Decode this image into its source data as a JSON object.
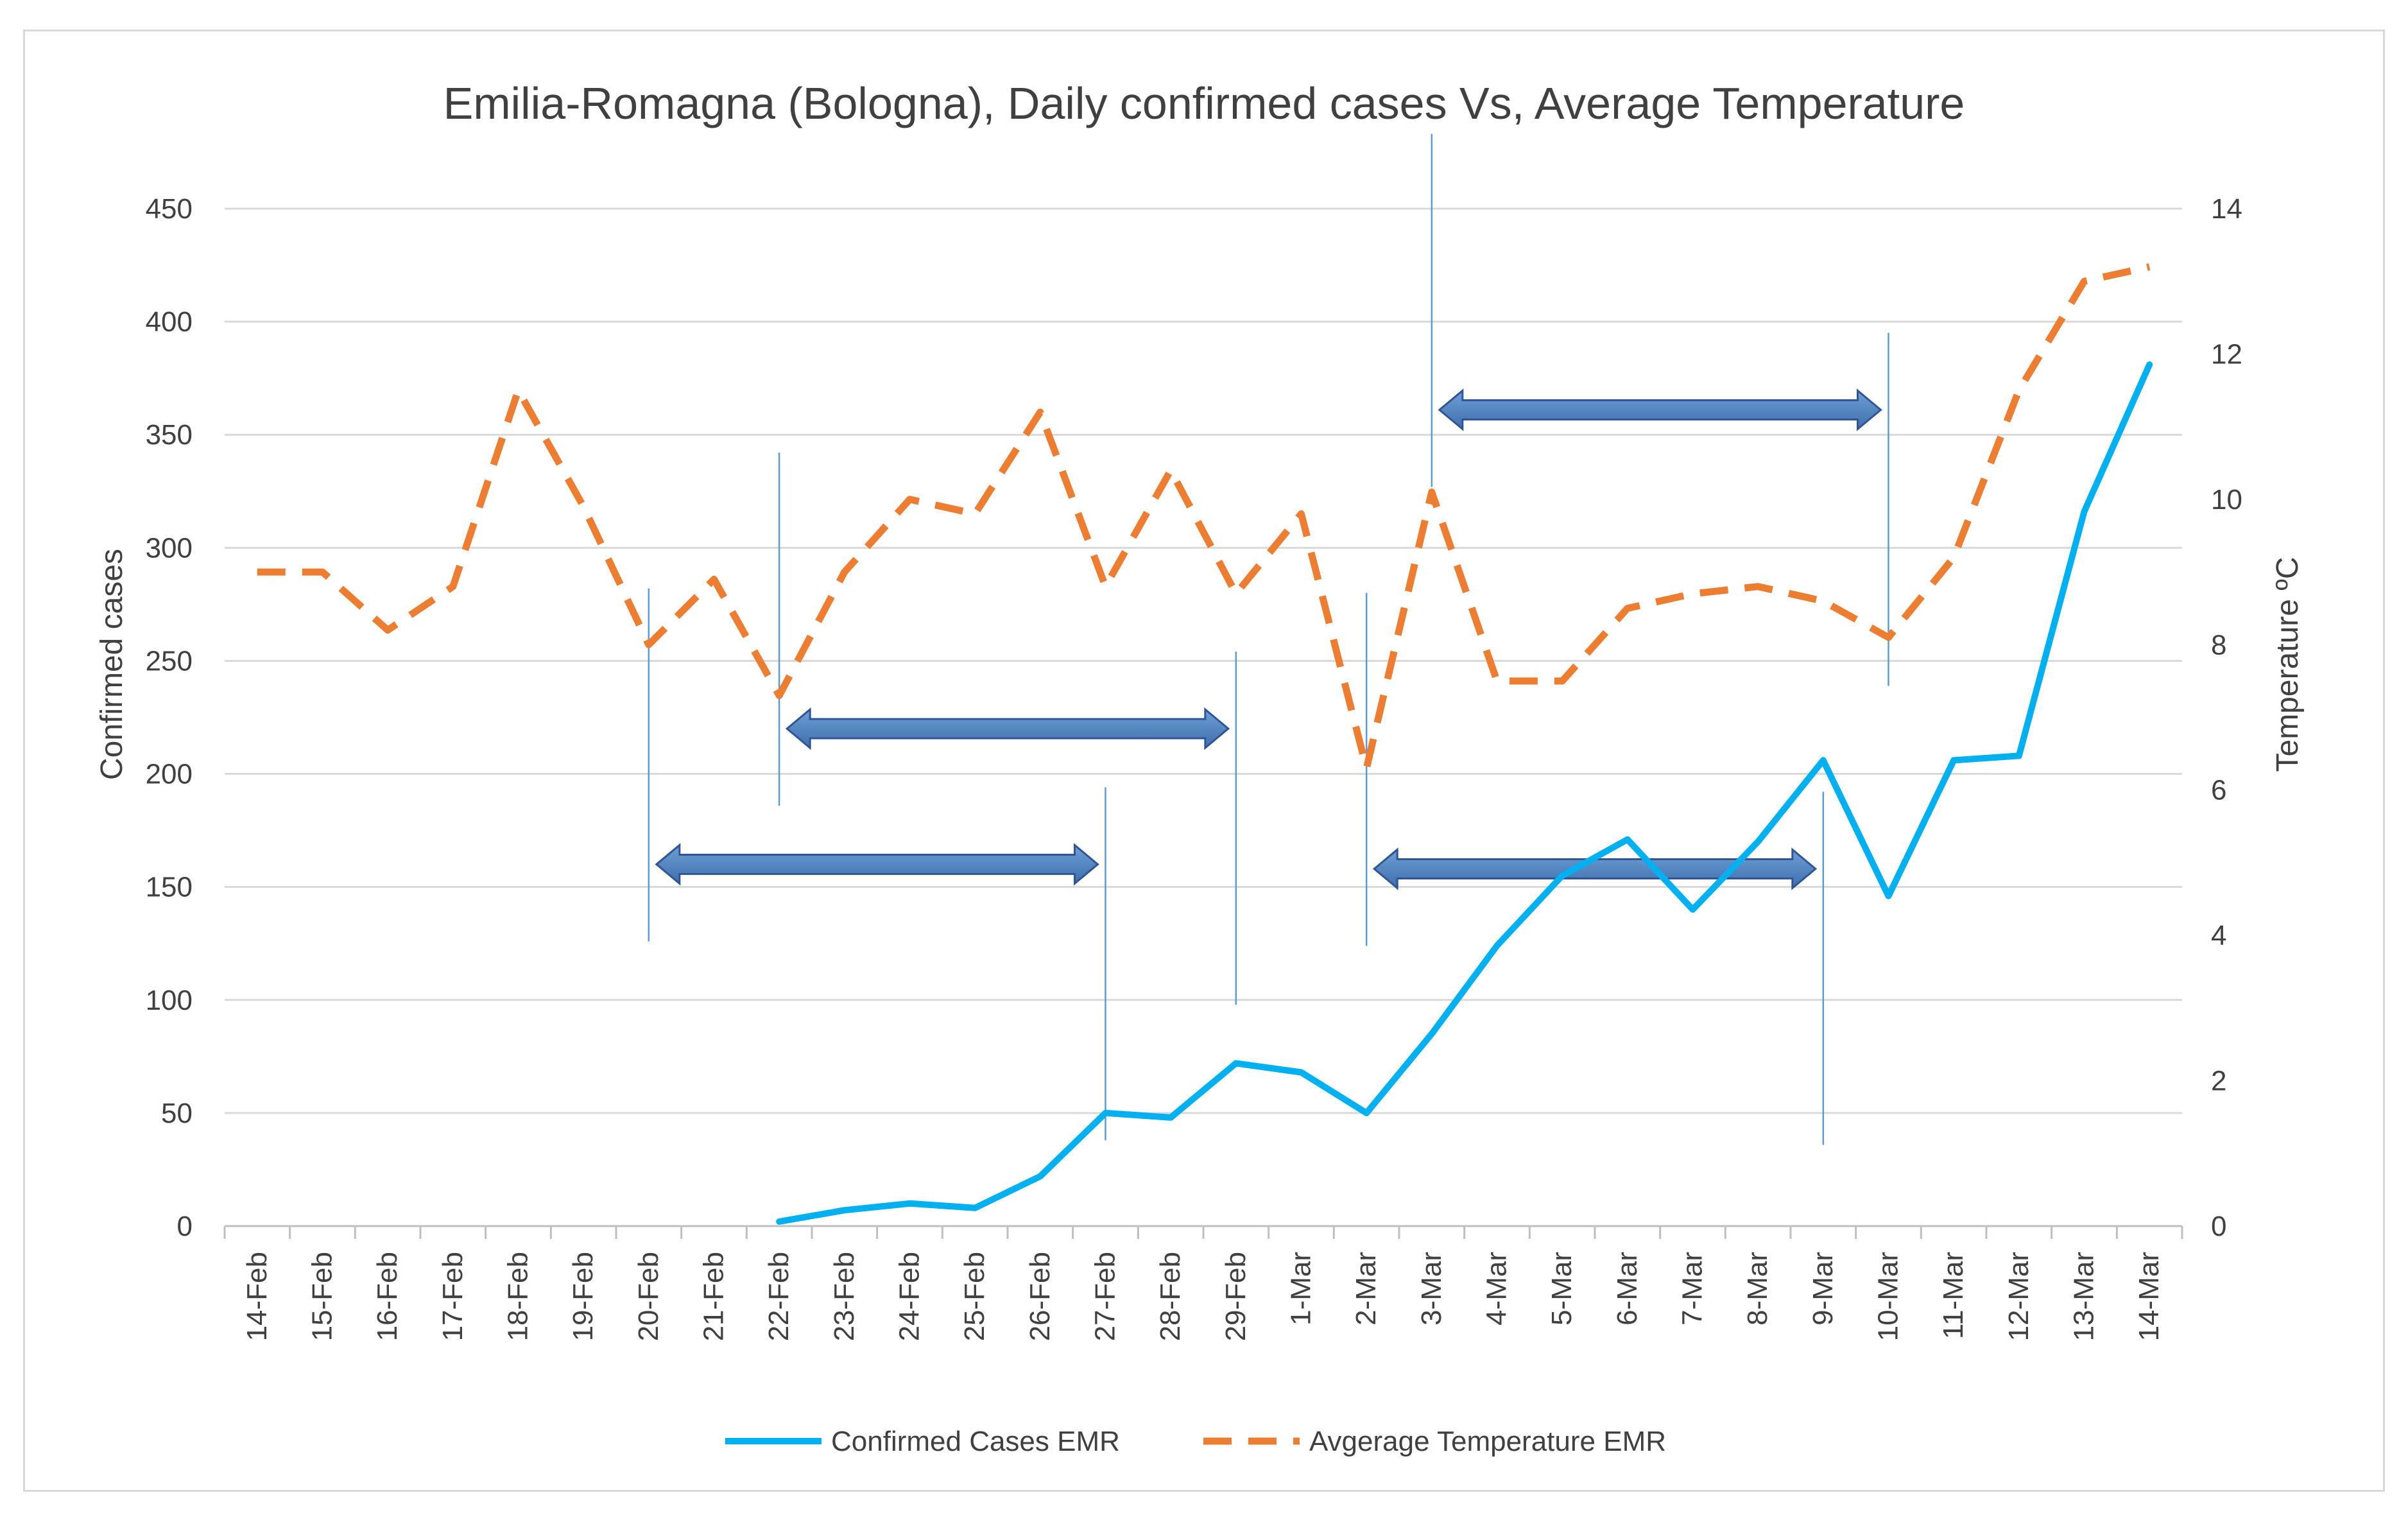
{
  "chart_data": {
    "type": "line",
    "title": "Emilia-Romagna (Bologna), Daily confirmed cases Vs, Average Temperature",
    "xlabel": "",
    "ylabel": "Confirmed cases",
    "y2label": "Temperature ºC",
    "ylim": [
      0,
      450
    ],
    "y2lim": [
      0,
      14
    ],
    "yticks": [
      0,
      50,
      100,
      150,
      200,
      250,
      300,
      350,
      400,
      450
    ],
    "y2ticks": [
      0,
      2,
      4,
      6,
      8,
      10,
      12,
      14
    ],
    "categories": [
      "14-Feb",
      "15-Feb",
      "16-Feb",
      "17-Feb",
      "18-Feb",
      "19-Feb",
      "20-Feb",
      "21-Feb",
      "22-Feb",
      "23-Feb",
      "24-Feb",
      "25-Feb",
      "26-Feb",
      "27-Feb",
      "28-Feb",
      "29-Feb",
      "1-Mar",
      "2-Mar",
      "3-Mar",
      "4-Mar",
      "5-Mar",
      "6-Mar",
      "7-Mar",
      "8-Mar",
      "9-Mar",
      "10-Mar",
      "11-Mar",
      "12-Mar",
      "13-Mar",
      "14-Mar"
    ],
    "series": [
      {
        "name": "Confirmed Cases EMR",
        "axis": "left",
        "color": "#00b0f0",
        "style": "solid",
        "values": [
          null,
          null,
          null,
          null,
          null,
          null,
          null,
          null,
          2,
          7,
          10,
          8,
          22,
          50,
          48,
          72,
          68,
          50,
          85,
          124,
          155,
          171,
          140,
          170,
          206,
          146,
          206,
          208,
          316,
          381
        ]
      },
      {
        "name": "Avgerage Temperature EMR",
        "axis": "right",
        "color": "#ed7d31",
        "style": "dashed",
        "values": [
          9.0,
          9.0,
          8.2,
          8.8,
          11.5,
          9.9,
          8.0,
          8.9,
          7.3,
          9.0,
          10.0,
          9.8,
          11.2,
          8.8,
          10.4,
          8.7,
          9.8,
          6.3,
          10.1,
          7.5,
          7.5,
          8.5,
          8.7,
          8.8,
          8.6,
          8.1,
          9.2,
          11.5,
          13.0,
          13.2
        ]
      }
    ],
    "annotations": [
      {
        "type": "double-arrow",
        "from": "20-Feb",
        "to": "27-Feb",
        "at_value": 160
      },
      {
        "type": "double-arrow",
        "from": "22-Feb",
        "to": "29-Feb",
        "at_value": 220
      },
      {
        "type": "double-arrow",
        "from": "2-Mar",
        "to": "9-Mar",
        "at_value": 158
      },
      {
        "type": "double-arrow",
        "from": "3-Mar",
        "to": "10-Mar",
        "at_value": 361
      }
    ],
    "legend_position": "bottom"
  }
}
